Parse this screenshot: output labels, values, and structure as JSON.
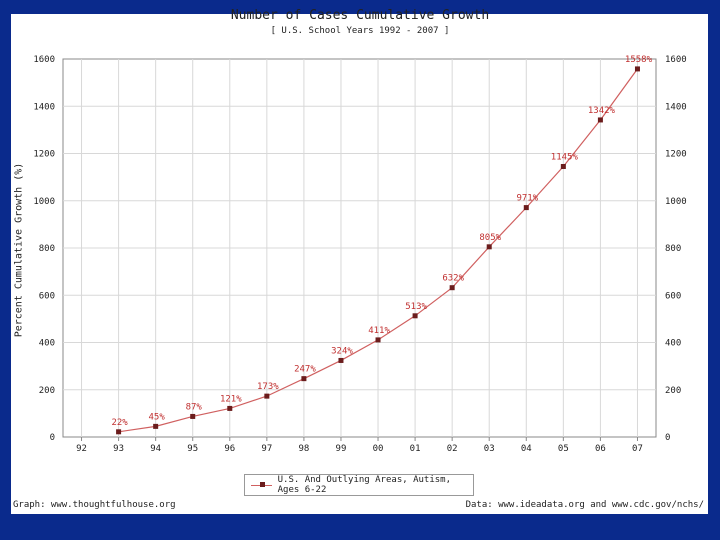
{
  "chart_data": {
    "type": "line",
    "title": "Number of Cases Cumulative Growth",
    "subtitle": "[ U.S. School Years 1992 - 2007 ]",
    "ylabel": "Percent Cumulative Growth (%)",
    "xlabel": "",
    "categories": [
      "92",
      "93",
      "94",
      "95",
      "96",
      "97",
      "98",
      "99",
      "00",
      "01",
      "02",
      "03",
      "04",
      "05",
      "06",
      "07"
    ],
    "series": [
      {
        "name": "U.S. And Outlying Areas, Autism, Ages 6-22",
        "values": [
          null,
          22,
          45,
          87,
          121,
          173,
          247,
          324,
          411,
          513,
          632,
          805,
          971,
          1145,
          1342,
          1558
        ],
        "labels": [
          "",
          "22%",
          "45%",
          "87%",
          "121%",
          "173%",
          "247%",
          "324%",
          "411%",
          "513%",
          "632%",
          "805%",
          "971%",
          "1145%",
          "1342%",
          "1558%"
        ]
      }
    ],
    "ylim": [
      0,
      1600
    ],
    "yticks": [
      "0",
      "200",
      "400",
      "600",
      "800",
      "1000",
      "1200",
      "1400",
      "1600"
    ],
    "yticks_right": [
      "0",
      "200",
      "400",
      "600",
      "800",
      "1000",
      "1200",
      "1400",
      "1600"
    ],
    "grid": true,
    "legend_position": "bottom-center",
    "colors": {
      "line": "#d06060",
      "marker": "#6b1c1c",
      "label": "#c03030",
      "grid": "#d8d8d8"
    }
  },
  "footer": {
    "left": "Graph: www.thoughtfulhouse.org",
    "right": "Data: www.ideadata.org and www.cdc.gov/nchs/"
  }
}
